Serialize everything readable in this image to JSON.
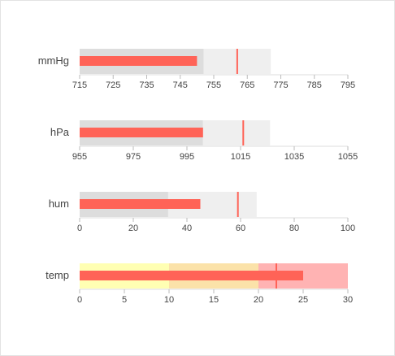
{
  "chart_data": [
    {
      "type": "bullet",
      "title": "mmHg",
      "xlim": [
        715,
        795
      ],
      "xticks": [
        715,
        725,
        735,
        745,
        755,
        765,
        775,
        785,
        795
      ],
      "ranges": [
        {
          "value": 752,
          "color": "#dddddd"
        },
        {
          "value": 772,
          "color": "#efefef"
        }
      ],
      "value": 750,
      "target": 762,
      "color": "#ff6357"
    },
    {
      "type": "bullet",
      "title": "hPa",
      "xlim": [
        955,
        1055
      ],
      "xticks": [
        955,
        975,
        995,
        1015,
        1035,
        1055
      ],
      "ranges": [
        {
          "value": 1001,
          "color": "#dddddd"
        },
        {
          "value": 1026,
          "color": "#efefef"
        }
      ],
      "value": 1001,
      "target": 1016,
      "color": "#ff6357"
    },
    {
      "type": "bullet",
      "title": "hum",
      "xlim": [
        0,
        100
      ],
      "xticks": [
        0,
        20,
        40,
        60,
        80,
        100
      ],
      "ranges": [
        {
          "value": 33,
          "color": "#dddddd"
        },
        {
          "value": 66,
          "color": "#efefef"
        }
      ],
      "value": 45,
      "target": 59,
      "color": "#ff6357"
    },
    {
      "type": "bullet",
      "title": "temp",
      "xlim": [
        0,
        30
      ],
      "xticks": [
        0,
        5,
        10,
        15,
        20,
        25,
        30
      ],
      "ranges": [
        {
          "value": 10,
          "color": "#ffffb3"
        },
        {
          "value": 20,
          "color": "#fbe2a9"
        },
        {
          "value": 30,
          "color": "#ffb3b3"
        }
      ],
      "value": 25,
      "target": 22,
      "color": "#ff6357"
    }
  ]
}
